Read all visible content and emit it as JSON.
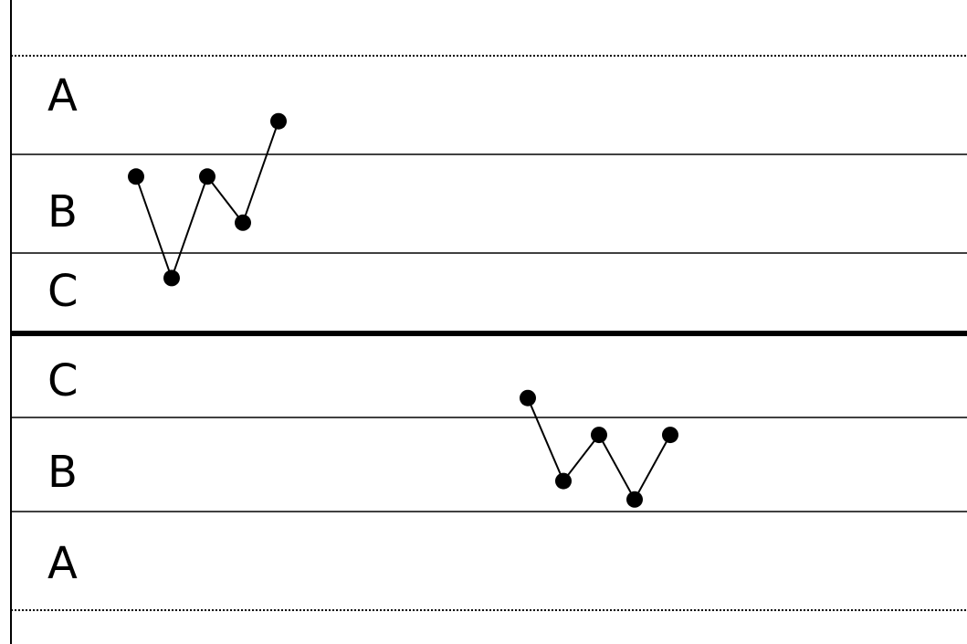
{
  "zones": {
    "upper": {
      "a": "A",
      "b": "B",
      "c": "C"
    },
    "lower": {
      "c": "C",
      "b": "B",
      "a": "A"
    }
  },
  "chart_data": {
    "type": "line",
    "description_note": "",
    "scale": {
      "center": 0,
      "c_edge": 1,
      "b_edge": 2,
      "a_edge": 3
    },
    "series": [
      {
        "x": [
          1,
          2,
          3,
          4,
          5
        ],
        "values": [
          1.7,
          0.6,
          1.7,
          1.2,
          2.3
        ]
      },
      {
        "x": [
          12,
          13,
          14,
          15,
          16
        ],
        "values": [
          -0.7,
          -1.6,
          -1.1,
          -1.8,
          -1.1
        ]
      }
    ],
    "colors": {
      "line": "#000000",
      "marker": "#000000"
    }
  }
}
